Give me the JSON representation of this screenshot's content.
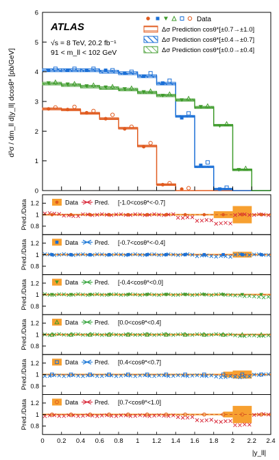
{
  "chart_data": {
    "type": "step",
    "atlas_label": "ATLAS",
    "energy_label": "√s = 8 TeV, 20.2 fb⁻¹",
    "mass_label": "91 < m_ll < 102 GeV",
    "ylabel_main": "d³σ / dm_ll d|y_ll| dcosθ* [pb/GeV]",
    "ylabel_ratio": "Pred./Data",
    "xlabel": "|y_ll|",
    "legend": {
      "data_label": "Data",
      "pred_entries": [
        "Δσ Prediction cosθ*[±0.7→±1.0]",
        "Δσ Prediction cosθ*[±0.4→±0.7]",
        "Δσ Prediction cosθ*[±0.0→±0.4]"
      ]
    },
    "colors": {
      "high": "#e05a1e",
      "mid": "#1a6fd6",
      "low": "#3d9a2a",
      "ratio_band": "#f7a030",
      "ratio_red": "#d92c3c",
      "ratio_blue": "#1c78d6",
      "ratio_green": "#3ea845"
    },
    "x_ticks": [
      "0",
      "0.2",
      "0.4",
      "0.6",
      "0.8",
      "1",
      "1.2",
      "1.4",
      "1.6",
      "1.8",
      "2",
      "2.2",
      "2.4"
    ],
    "main": {
      "xlim": [
        0,
        2.4
      ],
      "ylim": [
        0,
        6
      ],
      "y_ticks": [
        "0",
        "1",
        "2",
        "3",
        "4",
        "5",
        "6"
      ],
      "bin_edges": [
        0,
        0.2,
        0.4,
        0.6,
        0.8,
        1.0,
        1.2,
        1.4,
        1.6,
        1.8,
        2.0,
        2.2,
        2.4
      ],
      "series": [
        {
          "group": "high",
          "pred": [
            2.75,
            2.72,
            2.6,
            2.42,
            2.1,
            1.5,
            0.2,
            0,
            0,
            0,
            0,
            0
          ],
          "data_filled": [
            2.75,
            2.73,
            2.62,
            2.42,
            2.08,
            1.48,
            0.2,
            0.05,
            0.0,
            0.0,
            0.0,
            0.0
          ],
          "data_open": [
            2.8,
            2.82,
            2.68,
            2.55,
            2.15,
            1.6,
            0.25,
            0.08,
            0.0,
            0.0,
            0.0,
            0.0
          ]
        },
        {
          "group": "mid",
          "pred": [
            4.05,
            4.05,
            4.05,
            4.0,
            3.95,
            3.85,
            3.6,
            2.5,
            0.8,
            0.05,
            0,
            0
          ],
          "data_filled": [
            4.05,
            4.05,
            4.05,
            4.05,
            3.95,
            3.85,
            3.62,
            2.45,
            0.85,
            0.05,
            0.0,
            0.0
          ],
          "data_open": [
            4.1,
            4.1,
            4.1,
            4.05,
            4.0,
            3.95,
            3.7,
            2.6,
            0.95,
            0.1,
            0.0,
            0.0
          ]
        },
        {
          "group": "low",
          "pred": [
            3.6,
            3.55,
            3.5,
            3.45,
            3.4,
            3.3,
            3.2,
            3.05,
            2.8,
            2.2,
            0.7,
            0
          ],
          "data_filled": [
            3.62,
            3.58,
            3.52,
            3.48,
            3.42,
            3.32,
            3.2,
            3.05,
            2.82,
            2.18,
            0.7,
            0.0
          ],
          "data_open": [
            3.65,
            3.6,
            3.55,
            3.5,
            3.45,
            3.35,
            3.25,
            3.1,
            2.85,
            2.25,
            0.75,
            0.0
          ]
        }
      ]
    },
    "ratio": {
      "ylim": [
        0.7,
        1.3
      ],
      "y_ticks": [
        "0.8",
        "1",
        "1.2"
      ],
      "panels": [
        {
          "label": "[-1.0<cosθ*<-0.7]",
          "marker": "circle-filled",
          "pred_color": "ratio_red",
          "points": 12,
          "band_boxes": [
            [
              1.8,
              2.0,
              0.94,
              1.06
            ],
            [
              2.0,
              2.2,
              0.85,
              1.15
            ]
          ],
          "bad_points": [
            1.02,
            0.98,
            1.0,
            1.0,
            1.0,
            1.0,
            1.0,
            0.95,
            0.9,
            0.85,
            1.0,
            1.0
          ]
        },
        {
          "label": "[-0.7<cosθ*<-0.4]",
          "marker": "square-filled",
          "pred_color": "ratio_blue",
          "points": 12,
          "band_boxes": [
            [
              2.0,
              2.2,
              0.95,
              1.05
            ]
          ],
          "bad_points": [
            1.0,
            1.0,
            1.0,
            1.0,
            1.0,
            1.0,
            1.0,
            1.0,
            0.98,
            0.97,
            1.0,
            1.0
          ]
        },
        {
          "label": "[-0.4<cosθ*<0.0]",
          "marker": "triangle-down-filled",
          "pred_color": "ratio_green",
          "points": 12,
          "band_boxes": [],
          "bad_points": [
            1.0,
            1.0,
            1.0,
            1.0,
            1.0,
            1.0,
            1.0,
            1.0,
            1.0,
            1.0,
            0.98,
            0.96
          ]
        },
        {
          "label": "[0.0<cosθ*<0.4]",
          "marker": "triangle-up-open",
          "pred_color": "ratio_green",
          "points": 12,
          "band_boxes": [],
          "bad_points": [
            1.0,
            1.0,
            1.0,
            1.0,
            1.0,
            1.0,
            1.0,
            1.0,
            1.0,
            1.0,
            0.98,
            0.98
          ]
        },
        {
          "label": "[0.4<cosθ*<0.7]",
          "marker": "square-open",
          "pred_color": "ratio_blue",
          "points": 12,
          "band_boxes": [
            [
              1.9,
              2.0,
              0.95,
              1.05
            ],
            [
              2.0,
              2.2,
              0.93,
              1.07
            ]
          ],
          "bad_points": [
            0.98,
            0.98,
            0.98,
            0.98,
            0.98,
            0.98,
            0.98,
            0.98,
            0.98,
            0.96,
            0.96,
            1.0
          ]
        },
        {
          "label": "[0.7<cosθ*<1.0]",
          "marker": "circle-open",
          "pred_color": "ratio_red",
          "points": 12,
          "band_boxes": [
            [
              1.9,
              2.0,
              0.95,
              1.05
            ],
            [
              2.0,
              2.2,
              0.85,
              1.15
            ]
          ],
          "bad_points": [
            0.98,
            0.98,
            0.98,
            0.98,
            0.98,
            0.98,
            0.98,
            0.95,
            0.9,
            0.88,
            0.82,
            1.0
          ]
        }
      ],
      "legend_data": "Data",
      "legend_pred": "Pred."
    }
  }
}
